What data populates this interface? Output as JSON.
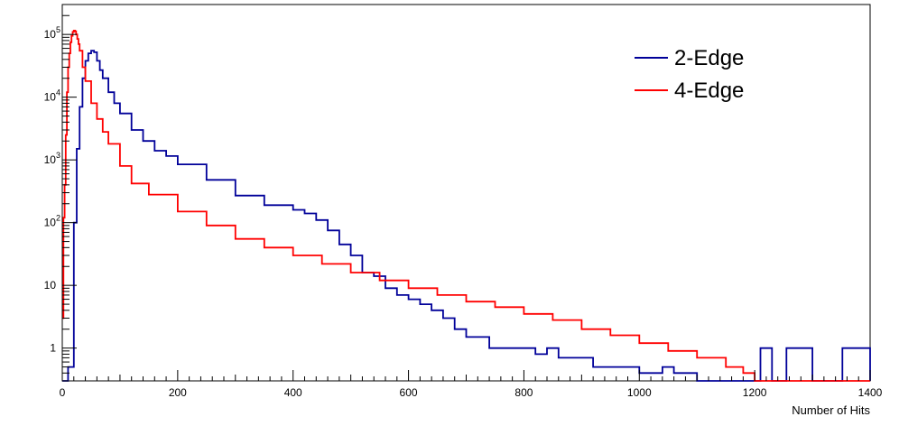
{
  "chart_data": {
    "type": "line",
    "title": "",
    "xlabel": "Number of Hits",
    "ylabel": "",
    "xlim": [
      0,
      1400
    ],
    "ylim": [
      0.3,
      300000
    ],
    "yscale": "log",
    "x_ticks": [
      {
        "value": 0,
        "label": "0"
      },
      {
        "value": 200,
        "label": "200"
      },
      {
        "value": 400,
        "label": "400"
      },
      {
        "value": 600,
        "label": "600"
      },
      {
        "value": 800,
        "label": "800"
      },
      {
        "value": 1000,
        "label": "1000"
      },
      {
        "value": 1200,
        "label": "1200"
      },
      {
        "value": 1400,
        "label": "1400"
      }
    ],
    "y_ticks": [
      {
        "value": 1,
        "base": "1",
        "exp": ""
      },
      {
        "value": 10,
        "base": "10",
        "exp": ""
      },
      {
        "value": 100,
        "base": "10",
        "exp": "2"
      },
      {
        "value": 1000,
        "base": "10",
        "exp": "3"
      },
      {
        "value": 10000,
        "base": "10",
        "exp": "4"
      },
      {
        "value": 100000,
        "base": "10",
        "exp": "5"
      }
    ],
    "legend_position": "top-right",
    "grid": false,
    "series": [
      {
        "name": "2-Edge",
        "color": "#000099",
        "x": [
          0,
          10,
          15,
          20,
          25,
          30,
          35,
          40,
          45,
          50,
          55,
          60,
          65,
          70,
          80,
          90,
          100,
          120,
          140,
          160,
          180,
          200,
          250,
          300,
          350,
          400,
          420,
          440,
          460,
          480,
          500,
          520,
          540,
          560,
          580,
          600,
          620,
          640,
          660,
          680,
          700,
          720,
          740,
          760,
          780,
          800,
          820,
          840,
          860,
          880,
          900,
          920,
          940,
          960,
          980,
          1000,
          1020,
          1040,
          1060,
          1080,
          1100,
          1150,
          1200,
          1210,
          1230,
          1255,
          1300,
          1350,
          1352,
          1397,
          1400
        ],
        "values": [
          0.3,
          0.5,
          0.5,
          100,
          1500,
          7000,
          20000,
          38000,
          50000,
          55000,
          52000,
          38000,
          27000,
          20000,
          12000,
          8000,
          5500,
          3000,
          2000,
          1400,
          1150,
          850,
          480,
          270,
          190,
          160,
          140,
          110,
          75,
          45,
          30,
          16,
          14,
          9,
          7,
          6,
          5,
          4,
          3,
          2,
          1.5,
          1.5,
          1,
          1,
          1,
          1,
          0.8,
          1,
          0.7,
          0.7,
          0.7,
          0.5,
          0.5,
          0.5,
          0.5,
          0.4,
          0.4,
          0.5,
          0.4,
          0.4,
          0.3,
          0.3,
          0.3,
          1,
          0.3,
          1,
          0.3,
          0.3,
          1,
          1,
          0.3
        ]
      },
      {
        "name": "4-Edge",
        "color": "#ff0000",
        "x": [
          0,
          2,
          4,
          6,
          8,
          10,
          12,
          14,
          16,
          18,
          20,
          22,
          24,
          26,
          28,
          30,
          35,
          40,
          50,
          60,
          70,
          80,
          100,
          120,
          150,
          200,
          250,
          300,
          350,
          400,
          450,
          500,
          550,
          600,
          650,
          700,
          750,
          800,
          850,
          900,
          950,
          1000,
          1050,
          1100,
          1150,
          1180,
          1200,
          1300,
          1400
        ],
        "values": [
          3,
          120,
          400,
          2500,
          12000,
          30000,
          50000,
          75000,
          95000,
          110000,
          115000,
          112000,
          100000,
          85000,
          70000,
          55000,
          30000,
          18000,
          8000,
          4500,
          2800,
          1800,
          800,
          420,
          280,
          150,
          90,
          55,
          40,
          30,
          22,
          16,
          12,
          9,
          7,
          5.5,
          4.5,
          3.5,
          2.8,
          2,
          1.6,
          1.2,
          0.9,
          0.7,
          0.5,
          0.4,
          0.3,
          0.3,
          0.3
        ]
      }
    ]
  }
}
